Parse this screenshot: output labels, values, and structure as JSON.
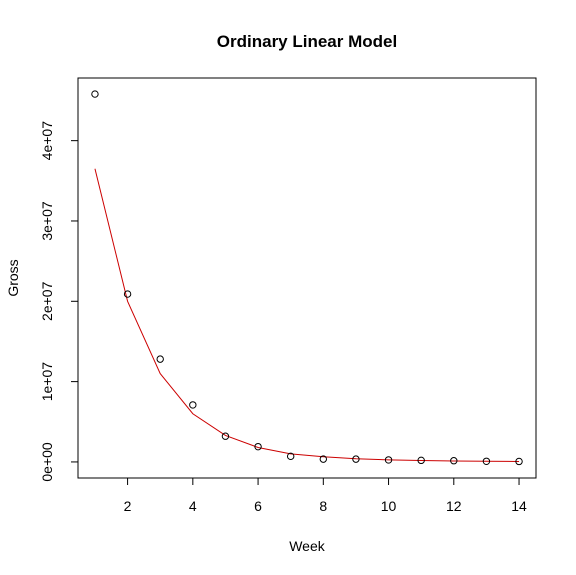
{
  "chart_data": {
    "type": "scatter",
    "title": "Ordinary Linear Model",
    "xlabel": "Week",
    "ylabel": "Gross",
    "xlim": [
      0.48,
      14.52
    ],
    "ylim": [
      -2000000,
      47800000
    ],
    "grid": false,
    "legend": "none",
    "x_ticks": [
      2,
      4,
      6,
      8,
      10,
      12,
      14
    ],
    "x_tick_labels": [
      "2",
      "4",
      "6",
      "8",
      "10",
      "12",
      "14"
    ],
    "y_ticks": [
      0,
      10000000,
      20000000,
      30000000,
      40000000
    ],
    "y_tick_labels": [
      "0e+00",
      "1e+07",
      "2e+07",
      "3e+07",
      "4e+07"
    ],
    "series": [
      {
        "kind": "points",
        "color": "#000000",
        "x": [
          1,
          2,
          3,
          4,
          5,
          6,
          7,
          8,
          9,
          10,
          11,
          12,
          13,
          14
        ],
        "y": [
          45800000,
          20900000,
          12800000,
          7100000,
          3200000,
          1900000,
          700000,
          350000,
          350000,
          250000,
          200000,
          150000,
          80000,
          60000
        ]
      },
      {
        "kind": "line",
        "color": "#cc0000",
        "x": [
          1,
          2,
          3,
          4,
          5,
          6,
          7,
          8,
          9,
          10,
          11,
          12,
          13,
          14
        ],
        "y": [
          36500000,
          20000000,
          11000000,
          6000000,
          3300000,
          1800000,
          1000000,
          650000,
          400000,
          250000,
          180000,
          120000,
          80000,
          60000
        ]
      }
    ]
  }
}
